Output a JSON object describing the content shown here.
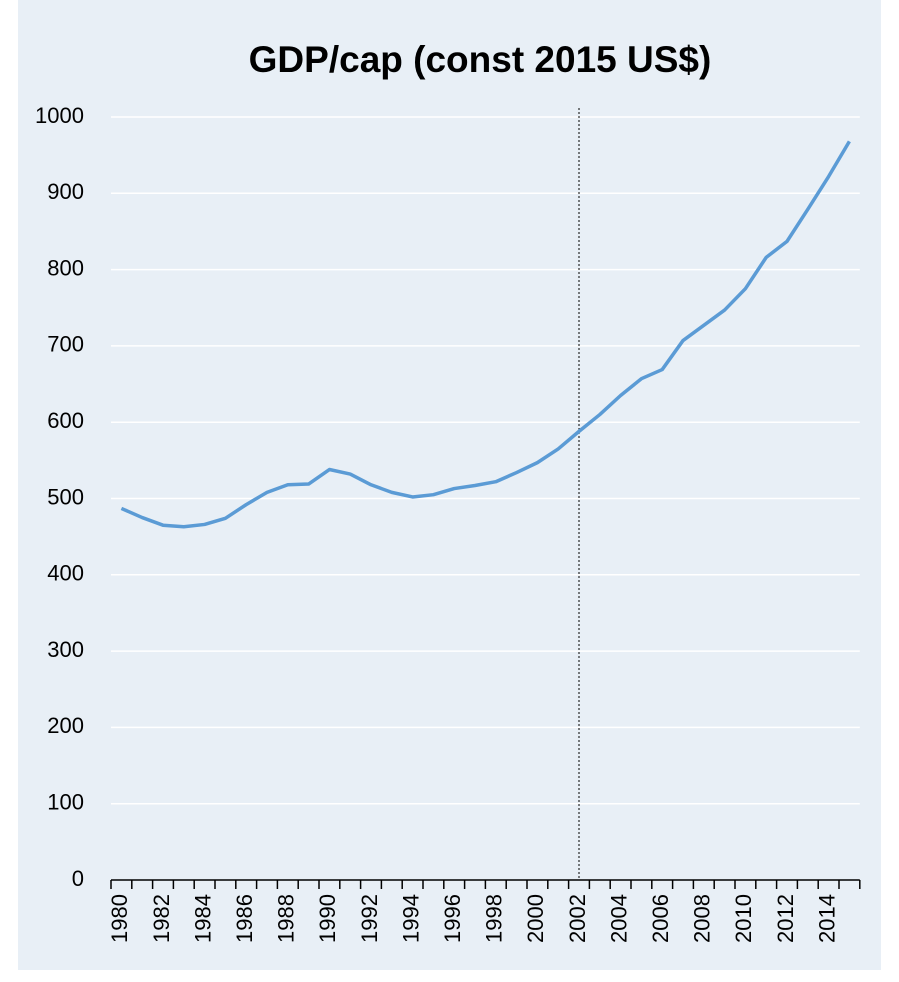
{
  "chart_data": {
    "type": "line",
    "title": "GDP/cap (const 2015 US$)",
    "categories": [
      "1980",
      null,
      "1982",
      null,
      "1984",
      null,
      "1986",
      null,
      "1988",
      null,
      "1990",
      null,
      "1992",
      null,
      "1994",
      null,
      "1996",
      null,
      "1998",
      null,
      "2000",
      null,
      "2002",
      null,
      "2004",
      null,
      "2006",
      null,
      "2008",
      null,
      "2010",
      null,
      "2012",
      null,
      "2014",
      null
    ],
    "values": [
      487,
      475,
      465,
      463,
      466,
      474,
      492,
      508,
      518,
      519,
      538,
      532,
      518,
      508,
      502,
      505,
      513,
      517,
      522,
      534,
      547,
      565,
      588,
      610,
      635,
      657,
      669,
      707,
      727,
      747,
      775,
      816,
      837,
      879,
      922,
      968
    ],
    "color": "#5b9bd5",
    "ylim": [
      0,
      1000
    ],
    "yticks": [
      0,
      100,
      200,
      300,
      400,
      500,
      600,
      700,
      800,
      900,
      1000
    ],
    "grid": true,
    "vline": "2002"
  }
}
